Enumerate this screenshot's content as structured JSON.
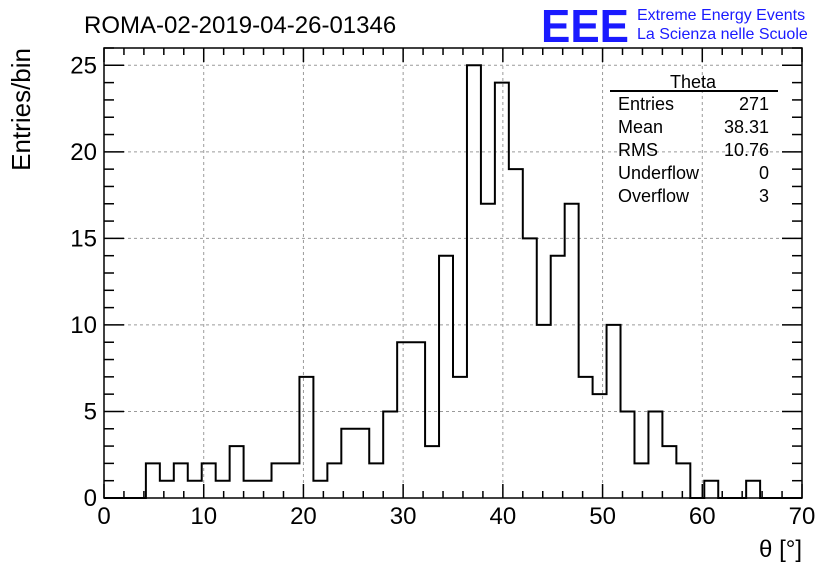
{
  "chart_data": {
    "type": "bar",
    "title": "ROMA-02-2019-04-26-01346",
    "xlabel": "θ [°]",
    "ylabel": "Entries/bin",
    "xlim": [
      0,
      70
    ],
    "ylim": [
      0,
      26
    ],
    "x_ticks": [
      0,
      10,
      20,
      30,
      40,
      50,
      60,
      70
    ],
    "y_ticks": [
      0,
      5,
      10,
      15,
      20,
      25
    ],
    "grid": true,
    "bin_width": 1.4,
    "values": [
      0,
      0,
      0,
      2,
      1,
      2,
      1,
      2,
      1,
      3,
      1,
      1,
      2,
      2,
      7,
      1,
      2,
      4,
      4,
      2,
      5,
      9,
      9,
      3,
      14,
      7,
      25,
      17,
      24,
      19,
      15,
      10,
      14,
      17,
      7,
      6,
      10,
      5,
      2,
      5,
      3,
      2,
      0,
      1,
      0,
      0,
      1,
      0,
      0,
      0
    ],
    "series": [
      {
        "values": [
          0,
          0,
          0,
          2,
          1,
          2,
          1,
          2,
          1,
          3,
          1,
          1,
          2,
          2,
          7,
          1,
          2,
          4,
          4,
          2,
          5,
          9,
          9,
          3,
          14,
          7,
          25,
          17,
          24,
          19,
          15,
          10,
          14,
          17,
          7,
          6,
          10,
          5,
          2,
          5,
          3,
          2,
          0,
          1,
          0,
          0,
          1,
          0,
          0,
          0
        ]
      }
    ]
  },
  "stats_box": {
    "title": "Theta",
    "rows": [
      {
        "label": "Entries",
        "value": "271"
      },
      {
        "label": "Mean",
        "value": "38.31"
      },
      {
        "label": "RMS",
        "value": "10.76"
      },
      {
        "label": "Underflow",
        "value": "0"
      },
      {
        "label": "Overflow",
        "value": "3"
      }
    ]
  },
  "logo": {
    "text": "EEE",
    "line1": "Extreme Energy Events",
    "line2": "La Scienza nelle Scuole",
    "color": "#1a1aff"
  },
  "colors": {
    "histogram": "#000000",
    "grid": "#9a9a9a"
  }
}
